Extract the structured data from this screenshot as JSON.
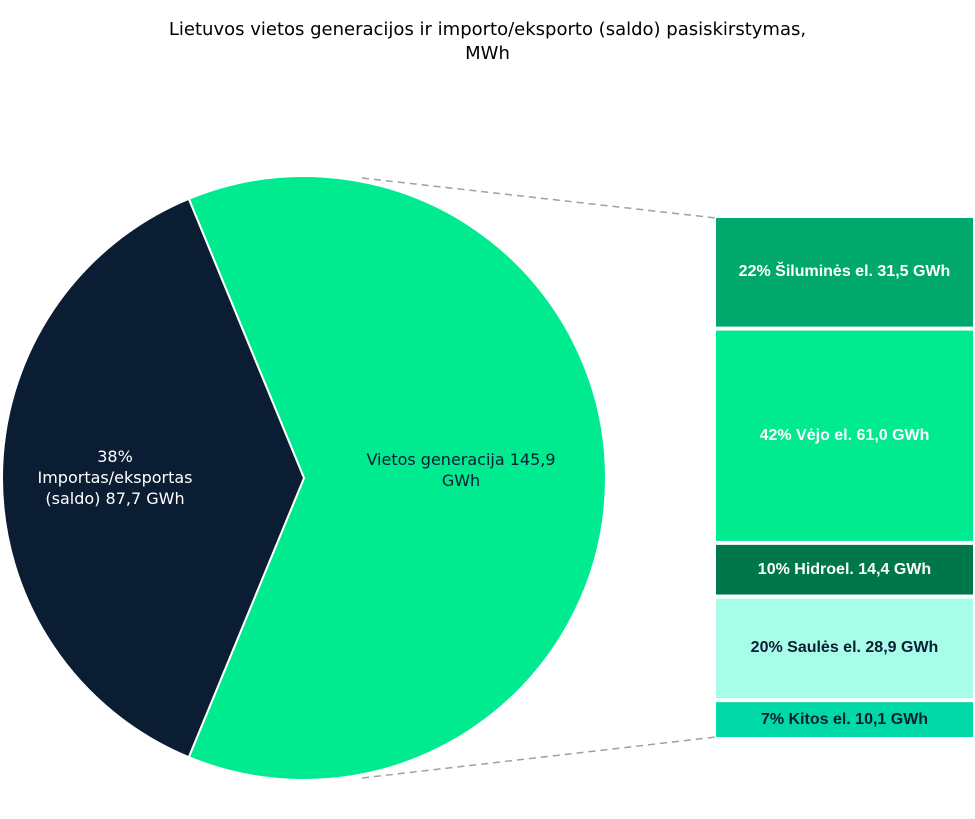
{
  "chart_data": {
    "type": "bar-of-pie",
    "title": "Lietuvos vietos generacijos ir importo/eksporto (saldo) pasiskirstymas,",
    "subtitle": "MWh",
    "pie": {
      "slices": [
        {
          "key": "import",
          "pct_label": "38%",
          "name": "Importas/eksportas (saldo)",
          "value_label": "87,7 GWh",
          "value": 87.7,
          "color": "#0b1d33",
          "text_color": "#ffffff"
        },
        {
          "key": "local",
          "name": "Vietos generacija",
          "value_label": "145,9 GWh",
          "value": 145.9,
          "color": "#00ea8f",
          "text_color": "#0b1d33"
        }
      ]
    },
    "breakdown": [
      {
        "label": "22% Šiluminės el.  31,5 GWh",
        "pct": 22,
        "value": 31.5,
        "color": "#00a86b",
        "text_color": "#ffffff"
      },
      {
        "label": "42% Vėjo el.  61,0 GWh",
        "pct": 42,
        "value": 61.0,
        "color": "#00ea8f",
        "text_color": "#ffffff"
      },
      {
        "label": "10% Hidroel.  14,4 GWh",
        "pct": 10,
        "value": 14.4,
        "color": "#00774b",
        "text_color": "#ffffff"
      },
      {
        "label": "20% Saulės el.  28,9 GWh",
        "pct": 20,
        "value": 28.9,
        "color": "#a8fde9",
        "text_color": "#0b1d33"
      },
      {
        "label": "7% Kitos el.   10,1 GWh",
        "pct": 7,
        "value": 10.1,
        "color": "#00d8a5",
        "text_color": "#0b1d33"
      }
    ]
  },
  "pie_labels": {
    "import_line1": "38%",
    "import_line2": "Importas/eksportas",
    "import_line3": "(saldo)  87,7 GWh",
    "local_line1": "Vietos generacija   145,9",
    "local_line2": "GWh"
  }
}
